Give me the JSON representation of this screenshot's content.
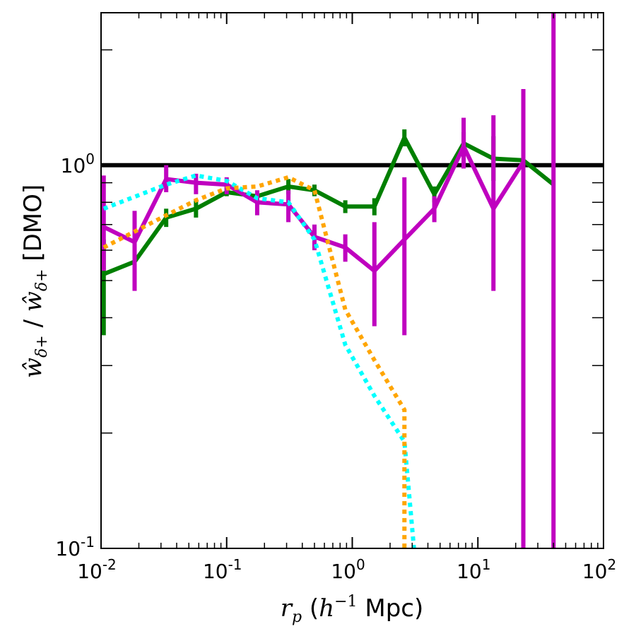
{
  "chart_data": {
    "type": "line",
    "xscale": "log",
    "yscale": "log",
    "xlim": [
      0.01,
      100
    ],
    "ylim": [
      0.1,
      2.5
    ],
    "xlabel": {
      "prefix": "r",
      "sub": "p",
      "open": " (",
      "h": "h",
      "sup": "−1",
      "units": " Mpc)"
    },
    "ylabel": {
      "main": "ŵ",
      "sub": "δ+",
      "sep": " / ",
      "main2": "ŵ",
      "sub2": "δ+",
      "suffix": " [DMO]"
    },
    "x_ticks": [
      {
        "value": 0.01,
        "base": "10",
        "exp": "-2"
      },
      {
        "value": 0.1,
        "base": "10",
        "exp": "-1"
      },
      {
        "value": 1,
        "base": "10",
        "exp": "0"
      },
      {
        "value": 10,
        "base": "10",
        "exp": "1"
      },
      {
        "value": 100,
        "base": "10",
        "exp": "2"
      }
    ],
    "y_ticks": [
      {
        "value": 0.1,
        "base": "10",
        "exp": "-1"
      },
      {
        "value": 1,
        "base": "10",
        "exp": "0"
      }
    ],
    "reference_line": {
      "y": 1.0,
      "color": "#000000"
    },
    "series": [
      {
        "name": "green",
        "color": "#007f00",
        "style": "solid",
        "x": [
          0.0105,
          0.0185,
          0.033,
          0.057,
          0.1,
          0.175,
          0.31,
          0.5,
          0.88,
          1.5,
          2.6,
          4.5,
          7.7,
          13.3,
          23,
          40
        ],
        "y": [
          0.52,
          0.56,
          0.73,
          0.77,
          0.85,
          0.83,
          0.88,
          0.86,
          0.78,
          0.78,
          1.18,
          0.84,
          1.14,
          1.04,
          1.03,
          0.89
        ],
        "err_lo": [
          0.36,
          null,
          0.69,
          0.73,
          0.83,
          null,
          0.84,
          0.83,
          0.75,
          0.74,
          1.12,
          0.8,
          1.05,
          0.91,
          null,
          null
        ],
        "err_hi": [
          0.64,
          null,
          0.77,
          0.81,
          0.88,
          null,
          0.92,
          0.89,
          0.81,
          0.82,
          1.24,
          0.88,
          1.22,
          1.19,
          null,
          null
        ]
      },
      {
        "name": "magenta",
        "color": "#bf00bf",
        "style": "solid",
        "x": [
          0.0105,
          0.0185,
          0.033,
          0.057,
          0.1,
          0.175,
          0.31,
          0.5,
          0.88,
          1.5,
          2.6,
          4.5,
          7.7,
          13.3,
          23,
          40
        ],
        "y": [
          0.69,
          0.63,
          0.92,
          0.9,
          0.89,
          0.8,
          0.79,
          0.65,
          0.61,
          0.53,
          0.64,
          0.77,
          1.12,
          0.77,
          1.02,
          null
        ],
        "err_lo": [
          0.53,
          0.47,
          0.85,
          0.84,
          0.84,
          0.74,
          0.71,
          0.6,
          0.56,
          0.38,
          0.36,
          0.71,
          0.98,
          0.47,
          0.1,
          0.1
        ],
        "err_hi": [
          0.94,
          0.76,
          1.0,
          0.95,
          0.93,
          0.86,
          0.86,
          0.7,
          0.66,
          0.71,
          0.93,
          0.83,
          1.33,
          1.35,
          1.58,
          2.5
        ]
      },
      {
        "name": "cyan",
        "color": "#00ffff",
        "style": "dotted",
        "x": [
          0.0105,
          0.033,
          0.057,
          0.1,
          0.175,
          0.31,
          0.5,
          0.88,
          1.5,
          2.6,
          3.1
        ],
        "y": [
          0.77,
          0.89,
          0.94,
          0.91,
          0.82,
          0.8,
          0.64,
          0.34,
          0.25,
          0.19,
          0.1
        ]
      },
      {
        "name": "orange",
        "color": "#ffa500",
        "style": "dotted",
        "x": [
          0.0105,
          0.033,
          0.057,
          0.1,
          0.175,
          0.31,
          0.5,
          0.88,
          1.5,
          2.6,
          2.6
        ],
        "y": [
          0.61,
          0.74,
          0.81,
          0.87,
          0.88,
          0.93,
          0.86,
          0.42,
          0.31,
          0.23,
          0.1
        ]
      }
    ]
  }
}
